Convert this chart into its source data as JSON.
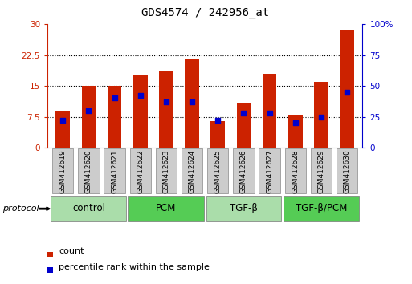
{
  "title": "GDS4574 / 242956_at",
  "samples": [
    "GSM412619",
    "GSM412620",
    "GSM412621",
    "GSM412622",
    "GSM412623",
    "GSM412624",
    "GSM412625",
    "GSM412626",
    "GSM412627",
    "GSM412628",
    "GSM412629",
    "GSM412630"
  ],
  "count_values": [
    9.0,
    15.0,
    15.0,
    17.5,
    18.5,
    21.5,
    6.5,
    11.0,
    18.0,
    8.0,
    16.0,
    28.5
  ],
  "percentile_values": [
    22,
    30,
    40,
    42,
    37,
    37,
    22,
    28,
    28,
    20,
    25,
    45
  ],
  "groups": [
    {
      "label": "control",
      "start": 0,
      "end": 3,
      "color": "#aaddaa"
    },
    {
      "label": "PCM",
      "start": 3,
      "end": 6,
      "color": "#55cc55"
    },
    {
      "label": "TGF-β",
      "start": 6,
      "end": 9,
      "color": "#aaddaa"
    },
    {
      "label": "TGF-β/PCM",
      "start": 9,
      "end": 12,
      "color": "#55cc55"
    }
  ],
  "ylim_left": [
    0,
    30
  ],
  "ylim_right": [
    0,
    100
  ],
  "yticks_left": [
    0,
    7.5,
    15,
    22.5,
    30
  ],
  "yticks_right": [
    0,
    25,
    50,
    75,
    100
  ],
  "bar_color": "#cc2200",
  "marker_color": "#0000cc",
  "bar_width": 0.55,
  "grid_color": "#000000",
  "bg_color": "#ffffff",
  "label_color_left": "#cc2200",
  "label_color_right": "#0000cc",
  "sample_box_color": "#cccccc",
  "sample_box_edge": "#888888",
  "group_label_fontsize": 8.5,
  "title_fontsize": 10,
  "sample_fontsize": 6.5
}
